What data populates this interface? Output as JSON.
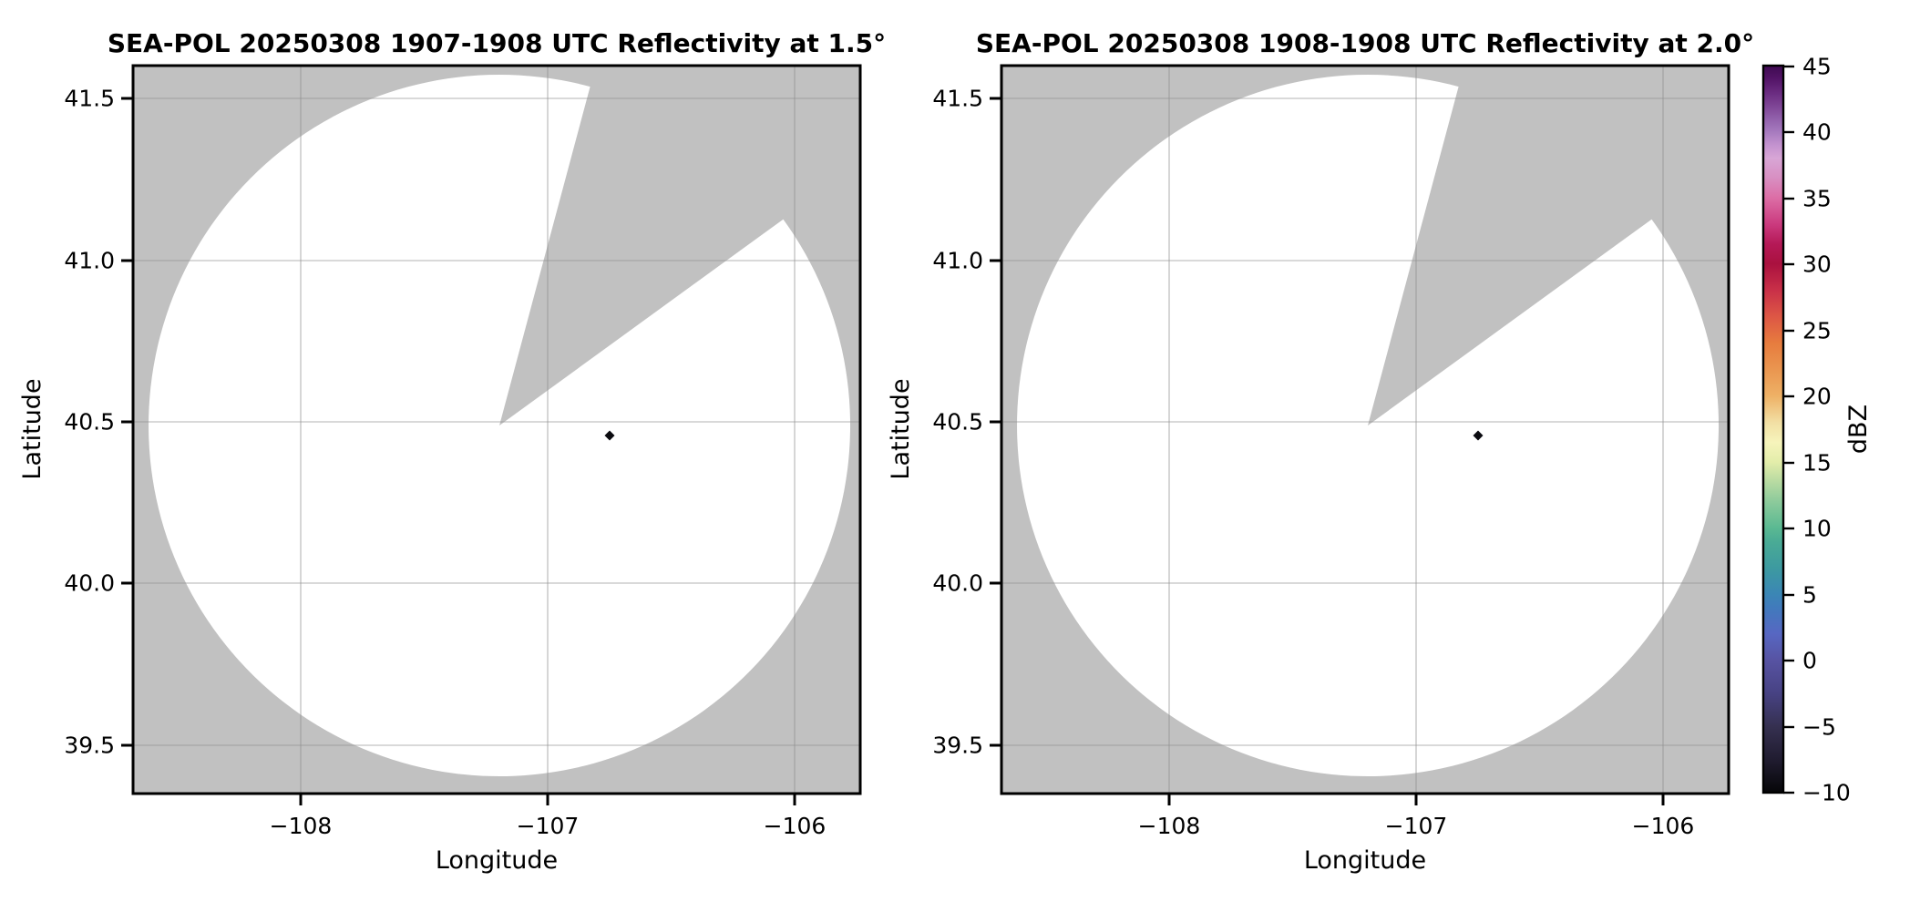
{
  "figure": {
    "background": "#ffffff"
  },
  "panels": [
    {
      "title": "SEA-POL 20250308 1907-1908 UTC Reflectivity at 1.5°",
      "xlabel": "Longitude",
      "ylabel": "Latitude",
      "xticks": [
        "−108",
        "−107",
        "−106"
      ],
      "yticks": [
        "41.5",
        "41.0",
        "40.5",
        "40.0",
        "39.5"
      ]
    },
    {
      "title": "SEA-POL 20250308 1908-1908 UTC Reflectivity at 2.0°",
      "xlabel": "Longitude",
      "ylabel": "Latitude",
      "xticks": [
        "−108",
        "−107",
        "−106"
      ],
      "yticks": [
        "41.5",
        "41.0",
        "40.5",
        "40.0",
        "39.5"
      ]
    }
  ],
  "colorbar": {
    "label": "dBZ",
    "range": [
      -10,
      45
    ],
    "ticks": [
      "45",
      "40",
      "35",
      "30",
      "25",
      "20",
      "15",
      "10",
      "5",
      "0",
      "−5",
      "−10"
    ],
    "tick_values": [
      45,
      40,
      35,
      30,
      25,
      20,
      15,
      10,
      5,
      0,
      -5,
      -10
    ],
    "gradient": [
      [
        -10,
        "#060608"
      ],
      [
        -7.5,
        "#201c30"
      ],
      [
        -5,
        "#353050"
      ],
      [
        -2.5,
        "#474283"
      ],
      [
        0,
        "#5753a2"
      ],
      [
        2,
        "#5767c2"
      ],
      [
        4,
        "#417abc"
      ],
      [
        5,
        "#3b86b5"
      ],
      [
        7,
        "#3d9aa0"
      ],
      [
        9,
        "#4aab95"
      ],
      [
        10,
        "#5ab992"
      ],
      [
        12,
        "#8cca9b"
      ],
      [
        14,
        "#c6e0a4"
      ],
      [
        15,
        "#e3edaa"
      ],
      [
        16.5,
        "#f6f4bb"
      ],
      [
        18,
        "#f2dfa4"
      ],
      [
        20,
        "#eeb166"
      ],
      [
        22,
        "#ea9650"
      ],
      [
        24,
        "#e77c3e"
      ],
      [
        26,
        "#dd5745"
      ],
      [
        28,
        "#c93048"
      ],
      [
        30,
        "#aa113f"
      ],
      [
        31.5,
        "#b51957"
      ],
      [
        33,
        "#cb3a7e"
      ],
      [
        35,
        "#dc6ea6"
      ],
      [
        36.5,
        "#d88fc2"
      ],
      [
        38,
        "#d8a6d6"
      ],
      [
        39,
        "#c392cf"
      ],
      [
        40,
        "#a67abe"
      ],
      [
        41,
        "#9160ab"
      ],
      [
        42,
        "#7d4394"
      ],
      [
        43,
        "#692a7f"
      ],
      [
        44,
        "#531467"
      ],
      [
        45,
        "#3e0a51"
      ]
    ]
  },
  "colors": {
    "panel_bg": "#c1c1c1",
    "coverage": "#ffffff",
    "gridline": "#8f8f8f",
    "frame": "#000000",
    "echo": "#0b0b10"
  },
  "chart_data": {
    "type": "heatmap",
    "subtype": "radar-ppi-reflectivity-map",
    "radar": "SEA-POL",
    "date": "20250308",
    "grid": true,
    "colorbar": {
      "label": "dBZ",
      "range": [
        -10,
        45
      ],
      "tick_step": 5,
      "palette": "dark-purple/black low through blue-teal-green-yellow-orange-red-magenta to dark purple high"
    },
    "panels": [
      {
        "title": "SEA-POL 20250308 1907-1908 UTC Reflectivity at 1.5°",
        "time_utc": "1907-1908",
        "elevation_deg": 1.5,
        "xlabel": "Longitude",
        "ylabel": "Latitude",
        "xlim": [
          -108.68,
          -105.73
        ],
        "ylim": [
          39.35,
          41.6
        ],
        "xticks": [
          -108,
          -107,
          -106
        ],
        "yticks": [
          39.5,
          40.0,
          40.5,
          41.0,
          41.5
        ],
        "radar_center": {
          "lon": -107.2,
          "lat": 40.49
        },
        "scan_radius_deg_lon": 1.44,
        "scan_radius_deg_lat": 1.09,
        "missing_sector_azimuth_deg": [
          15,
          54
        ],
        "no_data_color_note": "gray outside scan circle and inside missing sector; white = scanned, below-threshold reflectivity",
        "echo_points": [
          {
            "lon": -106.74,
            "lat": 40.45,
            "dbz_est": -10,
            "note": "single tiny black diamond echo"
          }
        ]
      },
      {
        "title": "SEA-POL 20250308 1908-1908 UTC Reflectivity at 2.0°",
        "time_utc": "1908-1908",
        "elevation_deg": 2.0,
        "xlabel": "Longitude",
        "ylabel": "Latitude",
        "xlim": [
          -108.68,
          -105.73
        ],
        "ylim": [
          39.35,
          41.6
        ],
        "xticks": [
          -108,
          -107,
          -106
        ],
        "yticks": [
          39.5,
          40.0,
          40.5,
          41.0,
          41.5
        ],
        "radar_center": {
          "lon": -107.2,
          "lat": 40.49
        },
        "scan_radius_deg_lon": 1.44,
        "scan_radius_deg_lat": 1.09,
        "missing_sector_azimuth_deg": [
          15,
          54
        ],
        "no_data_color_note": "gray outside scan circle and inside missing sector; white = scanned, below-threshold reflectivity",
        "echo_points": [
          {
            "lon": -106.74,
            "lat": 40.45,
            "dbz_est": -10,
            "note": "single tiny black diamond echo"
          }
        ]
      }
    ]
  }
}
